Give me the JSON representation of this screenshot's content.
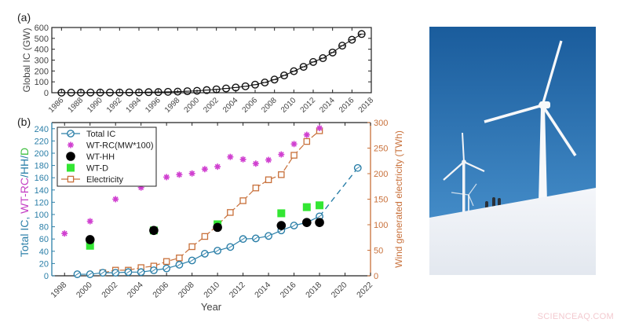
{
  "figure": {
    "panel_a_label": "(a)",
    "panel_b_label": "(b)",
    "watermark": "SCIENCEAQ.COM",
    "photo": {
      "description": "Wind turbines on a snowy hill against a blue sky with three people walking",
      "colors": {
        "sky_top": "#1c5f9f",
        "sky_bottom": "#4a95d2",
        "snow": "#eef1f6",
        "turbine": "#f7f8fa"
      }
    }
  },
  "chart_data": [
    {
      "type": "line",
      "panel": "(a)",
      "title": "",
      "xlabel": "",
      "ylabel": "Global IC (GW)",
      "xlim": [
        1985,
        2018
      ],
      "ylim": [
        0,
        600
      ],
      "xticks": [
        1986,
        1988,
        1990,
        1992,
        1994,
        1996,
        1998,
        2000,
        2002,
        2004,
        2006,
        2008,
        2010,
        2012,
        2014,
        2016,
        2018
      ],
      "yticks": [
        0,
        100,
        200,
        300,
        400,
        500,
        600
      ],
      "grid": false,
      "series": [
        {
          "name": "Global IC",
          "color": "#111111",
          "marker": "open-circle",
          "x": [
            1986,
            1987,
            1988,
            1989,
            1990,
            1991,
            1992,
            1993,
            1994,
            1995,
            1996,
            1997,
            1998,
            1999,
            2000,
            2001,
            2002,
            2003,
            2004,
            2005,
            2006,
            2007,
            2008,
            2009,
            2010,
            2011,
            2012,
            2013,
            2014,
            2015,
            2016,
            2017
          ],
          "values": [
            1,
            1,
            1,
            2,
            2,
            2,
            2,
            3,
            3,
            5,
            6,
            8,
            10,
            14,
            17,
            24,
            31,
            39,
            48,
            59,
            74,
            94,
            121,
            159,
            198,
            238,
            283,
            318,
            370,
            433,
            487,
            540
          ]
        }
      ]
    },
    {
      "type": "scatter",
      "panel": "(b)",
      "title": "",
      "xlabel": "Year",
      "ylabel": "Total IC, WT-RC/HH/D",
      "ylabel_parts": [
        {
          "text": "Total IC, ",
          "color": "#2b7fa8"
        },
        {
          "text": "WT-RC",
          "color": "#c43fc4"
        },
        {
          "text": "/HH/",
          "color": "#2b7fa8"
        },
        {
          "text": "D",
          "color": "#3fbf3f"
        }
      ],
      "y2label": "Wind generated electricity (TWh)",
      "xlim": [
        1997,
        2022
      ],
      "ylim": [
        0,
        250
      ],
      "y2lim": [
        0,
        300
      ],
      "xticks": [
        1998,
        2000,
        2002,
        2004,
        2006,
        2008,
        2010,
        2012,
        2014,
        2016,
        2018,
        2020,
        2022
      ],
      "yticks": [
        0,
        20,
        40,
        60,
        80,
        100,
        120,
        140,
        160,
        180,
        200,
        220,
        240
      ],
      "y2ticks": [
        0,
        50,
        100,
        150,
        200,
        250,
        300
      ],
      "grid": false,
      "legend": {
        "position": "upper-left",
        "entries": [
          "Total IC",
          "WT-RC(MW*100)",
          "WT-HH",
          "WT-D",
          "Electricity"
        ]
      },
      "series": [
        {
          "name": "Total IC",
          "axis": "left",
          "color": "#2b7fa8",
          "marker": "open-circle",
          "x": [
            1999,
            2000,
            2001,
            2002,
            2003,
            2004,
            2005,
            2006,
            2007,
            2008,
            2009,
            2010,
            2011,
            2012,
            2013,
            2014,
            2015,
            2016,
            2017,
            2018,
            2021
          ],
          "values": [
            2.5,
            2.5,
            5,
            5,
            6,
            6,
            9,
            12,
            18,
            25,
            36,
            41,
            47,
            60,
            61,
            65,
            74,
            82,
            87,
            97,
            176
          ],
          "note": "dashed line from 2018 to 2021 (projection)"
        },
        {
          "name": "WT-RC(MW*100)",
          "axis": "left",
          "color": "#d040d0",
          "marker": "asterisk",
          "x": [
            1998,
            2000,
            2002,
            2004,
            2006,
            2007,
            2008,
            2009,
            2010,
            2011,
            2012,
            2013,
            2014,
            2015,
            2016,
            2017,
            2018
          ],
          "values": [
            69,
            89,
            125,
            144,
            161,
            165,
            167,
            174,
            178,
            194,
            190,
            183,
            189,
            198,
            215,
            230,
            241
          ]
        },
        {
          "name": "WT-HH",
          "axis": "left",
          "color": "#000000",
          "marker": "filled-circle",
          "x": [
            2000,
            2005,
            2010,
            2015,
            2017,
            2018
          ],
          "values": [
            59,
            74,
            79,
            82,
            87,
            87
          ]
        },
        {
          "name": "WT-D",
          "axis": "left",
          "color": "#33e633",
          "marker": "filled-square",
          "x": [
            2000,
            2005,
            2010,
            2015,
            2017,
            2018
          ],
          "values": [
            49,
            74,
            84,
            102,
            112,
            115
          ]
        },
        {
          "name": "Electricity",
          "axis": "right",
          "color": "#c8703a",
          "marker": "open-square",
          "x": [
            2001,
            2002,
            2003,
            2004,
            2005,
            2006,
            2007,
            2008,
            2009,
            2010,
            2011,
            2012,
            2013,
            2014,
            2015,
            2016,
            2017,
            2018
          ],
          "values": [
            6,
            11,
            11,
            16,
            19,
            28,
            35,
            57,
            77,
            99,
            124,
            147,
            172,
            188,
            198,
            236,
            263,
            284
          ]
        }
      ]
    }
  ]
}
